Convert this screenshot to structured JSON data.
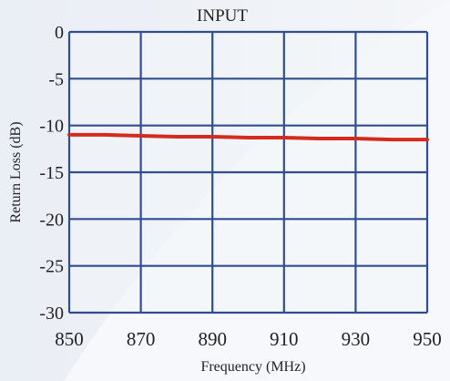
{
  "chart_data": {
    "type": "line",
    "title": "INPUT",
    "xlabel": "Frequency (MHz)",
    "ylabel": "Return Loss (dB)",
    "xlim": [
      850,
      950
    ],
    "ylim": [
      -30,
      0
    ],
    "x_ticks": [
      850,
      870,
      890,
      910,
      930,
      950
    ],
    "y_ticks": [
      0,
      -5,
      -10,
      -15,
      -20,
      -25,
      -30
    ],
    "grid": true,
    "series": [
      {
        "x": [
          850,
          860,
          870,
          880,
          890,
          900,
          910,
          920,
          930,
          940,
          950
        ],
        "y": [
          -11.0,
          -11.0,
          -11.1,
          -11.2,
          -11.2,
          -11.3,
          -11.3,
          -11.4,
          -11.4,
          -11.5,
          -11.5
        ]
      }
    ]
  },
  "colors": {
    "grid": "#2f4d8f",
    "series": "#d52b1e",
    "text": "#222222",
    "axis_text": "#2b3a6a"
  }
}
